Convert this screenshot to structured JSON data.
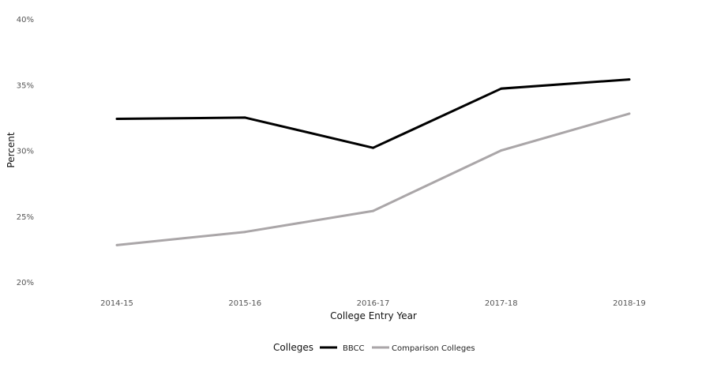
{
  "chart_data": {
    "type": "line",
    "title": "",
    "xlabel": "College Entry Year",
    "ylabel": "Percent",
    "categories": [
      "2014-15",
      "2015-16",
      "2016-17",
      "2017-18",
      "2018-19"
    ],
    "ylim": [
      20,
      40
    ],
    "yticks": [
      20,
      25,
      30,
      35,
      40
    ],
    "ytick_labels": [
      "20%",
      "25%",
      "30%",
      "35%",
      "40%"
    ],
    "grid": false,
    "legend_position": "bottom",
    "legend_title": "Colleges",
    "series": [
      {
        "name": "BBCC",
        "color": "#000000",
        "values": [
          32.4,
          32.5,
          30.2,
          34.7,
          35.4
        ]
      },
      {
        "name": "Comparison Colleges",
        "color": "#aaa6a8",
        "values": [
          22.8,
          23.8,
          25.4,
          30.0,
          32.8
        ]
      }
    ]
  }
}
